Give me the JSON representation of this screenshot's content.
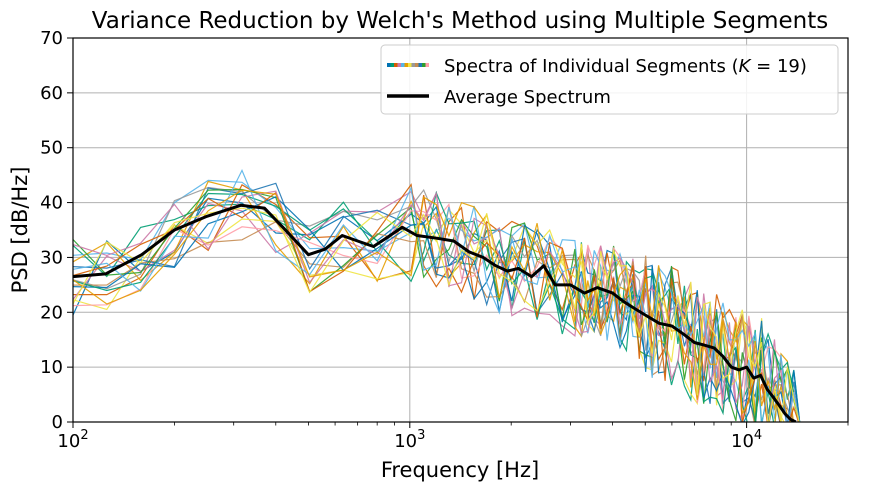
{
  "chart_data": {
    "type": "line",
    "title": "Variance Reduction by Welch's Method using Multiple Segments",
    "xlabel": "Frequency [Hz]",
    "ylabel": "PSD [dB/Hz]",
    "xscale": "log",
    "xlim": [
      100,
      20000
    ],
    "ylim": [
      0,
      70
    ],
    "grid": true,
    "legend_position": "top-right",
    "x_tick_labels": [
      {
        "value": 100,
        "base": "10",
        "exp": "2"
      },
      {
        "value": 1000,
        "base": "10",
        "exp": "3"
      },
      {
        "value": 10000,
        "base": "10",
        "exp": "4"
      }
    ],
    "y_ticks": [
      0,
      10,
      20,
      30,
      40,
      50,
      60,
      70
    ],
    "legend": {
      "segments_label_prefix": "Spectra of Individual Segments (",
      "segments_label_var": "K",
      "segments_label_suffix": " = 19)",
      "average_label": "Average Spectrum"
    },
    "segment_colors": [
      "#0072b2",
      "#009e73",
      "#d55e00",
      "#cc79a7",
      "#56b4e9",
      "#e69f00",
      "#f0e442",
      "#999999",
      "#c58c52",
      "#1f77b4",
      "#2ca02c",
      "#ff9da7"
    ],
    "average_series": {
      "name": "Average Spectrum",
      "color": "#000000",
      "x": [
        100,
        125,
        160,
        200,
        250,
        315,
        370,
        420,
        500,
        560,
        630,
        700,
        780,
        850,
        950,
        1050,
        1200,
        1350,
        1500,
        1650,
        1800,
        1950,
        2100,
        2300,
        2500,
        2700,
        3000,
        3300,
        3600,
        4000,
        4300,
        4700,
        5000,
        5500,
        6000,
        6500,
        7000,
        7500,
        8000,
        8500,
        9000,
        9500,
        10000,
        10500,
        11000,
        11500,
        12000,
        12500,
        13000,
        13500,
        14000
      ],
      "y": [
        26.5,
        27,
        30.5,
        35,
        37.5,
        39.5,
        39,
        35.5,
        30.5,
        31.5,
        34,
        33,
        32,
        33.5,
        35.5,
        34,
        33.5,
        33,
        31,
        30,
        28.5,
        27.5,
        28,
        26.5,
        28.5,
        25,
        25,
        23.5,
        24.5,
        23.5,
        22,
        20.5,
        19.5,
        18,
        17.5,
        16,
        14.5,
        14,
        13.5,
        12,
        10,
        9.5,
        10,
        8,
        8.5,
        6,
        4.5,
        3,
        1.5,
        0.5,
        0
      ]
    }
  }
}
